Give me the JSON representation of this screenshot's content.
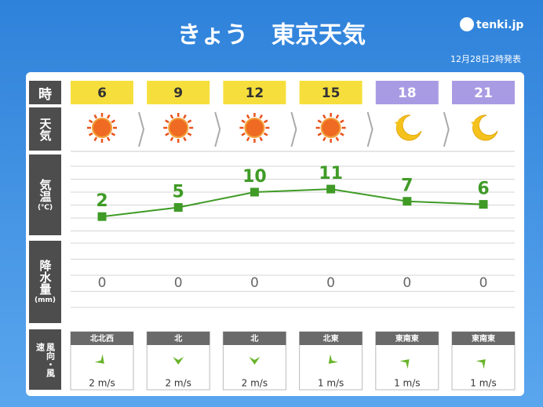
{
  "header": {
    "title": "きょう　東京天気",
    "logo": "tenki.jp",
    "issued": "12月28日2時発表"
  },
  "labels": {
    "time": "時",
    "weather": "天気",
    "temp": "気温",
    "temp_unit": "(℃)",
    "precip": "降水量",
    "precip_unit": "(mm)",
    "wind": "風向・風速"
  },
  "hours": [
    6,
    9,
    12,
    15,
    18,
    21
  ],
  "temperatures": [
    2,
    5,
    10,
    11,
    7,
    6
  ],
  "precipitation": [
    0,
    0,
    0,
    0,
    0,
    0
  ],
  "wind_directions": [
    "北北西",
    "北",
    "北",
    "北東",
    "東南東",
    "東南東"
  ],
  "wind_speeds": [
    "2 m/s",
    "2 m/s",
    "2 m/s",
    "1 m/s",
    "1 m/s",
    "1 m/s"
  ]
}
